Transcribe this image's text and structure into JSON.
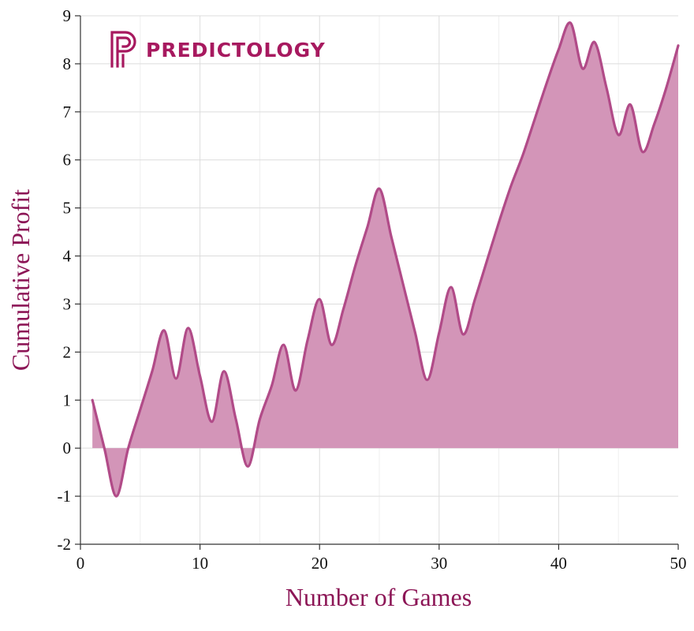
{
  "logo": {
    "text": "PREDICTOLOGY",
    "color": "#a7195f"
  },
  "colors": {
    "line": "#b14b88",
    "fill": "#d395b8",
    "axis_title": "#8c1656",
    "grid_major": "#dcdcdc",
    "grid_minor": "#efefef",
    "axis": "#333333"
  },
  "chart_data": {
    "type": "area",
    "title": "",
    "xlabel": "Number of Games",
    "ylabel": "Cumulative Profit",
    "xlim": [
      0,
      50
    ],
    "ylim": [
      -2,
      9
    ],
    "xticks": [
      0,
      10,
      20,
      30,
      40,
      50
    ],
    "yticks": [
      -2,
      -1,
      0,
      1,
      2,
      3,
      4,
      5,
      6,
      7,
      8,
      9
    ],
    "grid": true,
    "legend": "none",
    "series": [
      {
        "x": [
          1,
          2,
          3,
          4,
          5,
          6,
          7,
          8,
          9,
          10,
          11,
          12,
          13,
          14,
          15,
          16,
          17,
          18,
          19,
          20,
          21,
          22,
          23,
          24,
          25,
          26,
          27,
          28,
          29,
          30,
          31,
          32,
          33,
          34,
          35,
          36,
          37,
          38,
          39,
          40,
          41,
          42,
          43,
          44,
          45,
          46,
          47,
          48,
          49,
          50
        ],
        "y": [
          1.0,
          0.0,
          -1.0,
          0.0,
          0.8,
          1.6,
          2.45,
          1.45,
          2.5,
          1.5,
          0.55,
          1.6,
          0.6,
          -0.38,
          0.6,
          1.3,
          2.15,
          1.2,
          2.25,
          3.1,
          2.15,
          2.9,
          3.8,
          4.6,
          5.4,
          4.4,
          3.4,
          2.4,
          1.42,
          2.4,
          3.35,
          2.37,
          3.1,
          3.9,
          4.7,
          5.45,
          6.1,
          6.85,
          7.6,
          8.3,
          8.85,
          7.9,
          8.45,
          7.5,
          6.52,
          7.15,
          6.17,
          6.75,
          7.5,
          8.38
        ]
      }
    ]
  }
}
